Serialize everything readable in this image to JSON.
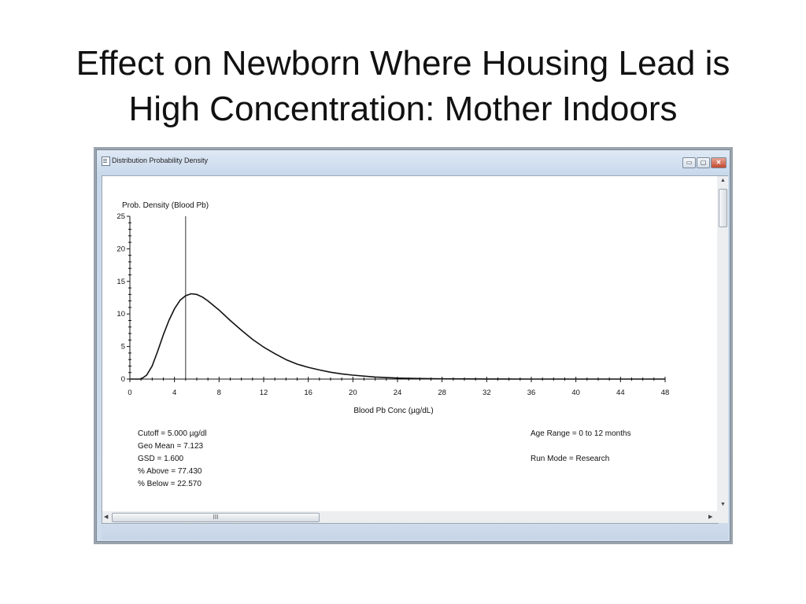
{
  "slide": {
    "title_line1": "Effect on Newborn Where Housing Lead is",
    "title_line2": "High Concentration:  Mother Indoors"
  },
  "window": {
    "title": "Distribution Probability Density",
    "buttons": {
      "minimize": "▭",
      "maximize": "▢",
      "close": "✕"
    },
    "hscroll_grip": "III"
  },
  "chart_data": {
    "type": "line",
    "ylabel": "Prob. Density (Blood Pb)",
    "xlabel": "Blood Pb Conc (µg/dL)",
    "xlim": [
      0,
      48
    ],
    "ylim": [
      0,
      25
    ],
    "x_ticks": [
      "0",
      "4",
      "8",
      "12",
      "16",
      "20",
      "24",
      "28",
      "32",
      "36",
      "40",
      "44",
      "48"
    ],
    "y_ticks": [
      "0",
      "5",
      "10",
      "15",
      "20",
      "25"
    ],
    "cutoff_line_x": 5.0,
    "series": [
      {
        "x": [
          0,
          1,
          1.5,
          2,
          2.5,
          3,
          3.5,
          4,
          4.5,
          5,
          5.5,
          6,
          6.5,
          7,
          8,
          9,
          10,
          11,
          12,
          13,
          14,
          15,
          16,
          17,
          18,
          19,
          20,
          22,
          24,
          26,
          28,
          30,
          32,
          36,
          40,
          44,
          48
        ],
        "y": [
          0,
          0,
          0.6,
          2.0,
          4.3,
          6.8,
          9.0,
          10.8,
          12.1,
          12.8,
          13.1,
          13.0,
          12.6,
          12.0,
          10.6,
          9.0,
          7.5,
          6.1,
          4.9,
          3.9,
          3.0,
          2.3,
          1.8,
          1.4,
          1.05,
          0.8,
          0.6,
          0.32,
          0.16,
          0.08,
          0.04,
          0.02,
          0.01,
          0,
          0,
          0,
          0
        ]
      }
    ]
  },
  "info_left": {
    "cutoff": "Cutoff = 5.000  µg/dl",
    "geo_mean": "Geo Mean = 7.123",
    "gsd": "GSD = 1.600",
    "pct_above": "% Above = 77.430",
    "pct_below": "% Below = 22.570"
  },
  "info_right": {
    "age_range": "Age Range = 0 to 12 months",
    "run_mode": "Run Mode = Research"
  }
}
